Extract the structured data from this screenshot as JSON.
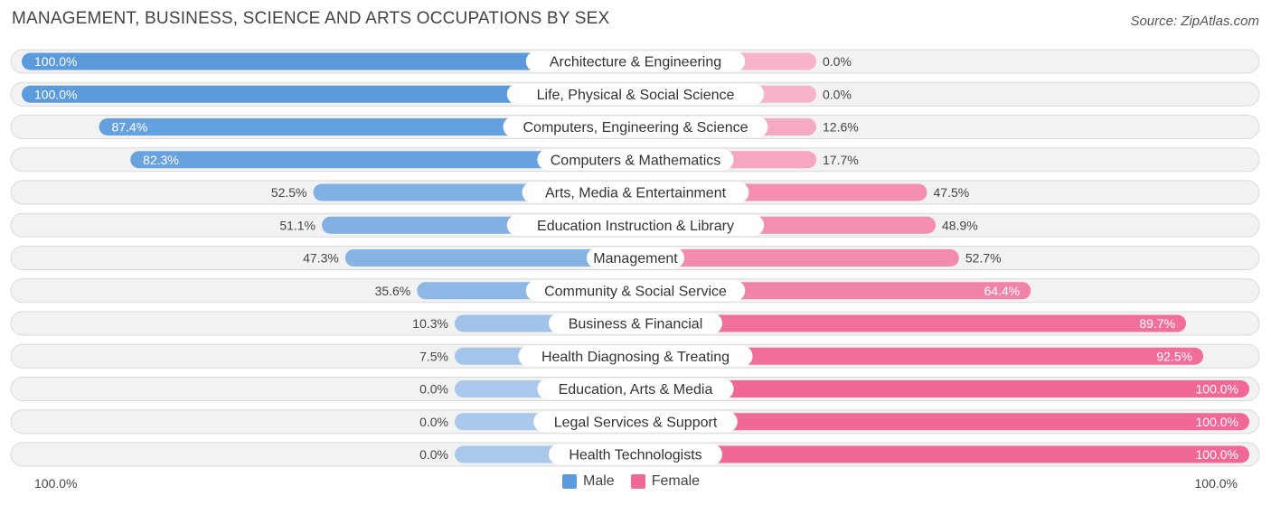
{
  "title": "MANAGEMENT, BUSINESS, SCIENCE AND ARTS OCCUPATIONS BY SEX",
  "source": "Source: ZipAtlas.com",
  "colors": {
    "male_strong": "#5b9bdc",
    "male_light": "#a9c8ec",
    "female_strong": "#f06896",
    "female_light": "#f7b3c8",
    "row_bg": "#f2f2f2",
    "row_border": "#d9d9d9"
  },
  "axis": {
    "left_label": "100.0%",
    "right_label": "100.0%"
  },
  "legend": [
    {
      "label": "Male",
      "color": "#5b9bdc"
    },
    {
      "label": "Female",
      "color": "#f06896"
    }
  ],
  "chart_data": {
    "type": "bar",
    "orientation": "horizontal-diverging",
    "categories": [
      "Architecture & Engineering",
      "Life, Physical & Social Science",
      "Computers, Engineering & Science",
      "Computers & Mathematics",
      "Arts, Media & Entertainment",
      "Education Instruction & Library",
      "Management",
      "Community & Social Service",
      "Business & Financial",
      "Health Diagnosing & Treating",
      "Education, Arts & Media",
      "Legal Services & Support",
      "Health Technologists"
    ],
    "series": [
      {
        "name": "Male",
        "values": [
          100.0,
          100.0,
          87.4,
          82.3,
          52.5,
          51.1,
          47.3,
          35.6,
          10.3,
          7.5,
          0.0,
          0.0,
          0.0
        ]
      },
      {
        "name": "Female",
        "values": [
          0.0,
          0.0,
          12.6,
          17.7,
          47.5,
          48.9,
          52.7,
          64.4,
          89.7,
          92.5,
          100.0,
          100.0,
          100.0
        ]
      }
    ],
    "labels_male": [
      "100.0%",
      "100.0%",
      "87.4%",
      "82.3%",
      "52.5%",
      "51.1%",
      "47.3%",
      "35.6%",
      "10.3%",
      "7.5%",
      "0.0%",
      "0.0%",
      "0.0%"
    ],
    "labels_female": [
      "0.0%",
      "0.0%",
      "12.6%",
      "17.7%",
      "47.5%",
      "48.9%",
      "52.7%",
      "64.4%",
      "89.7%",
      "92.5%",
      "100.0%",
      "100.0%",
      "100.0%"
    ],
    "xlim": [
      -100,
      100
    ],
    "unit": "%",
    "legend_position": "bottom-center",
    "grid": false
  }
}
